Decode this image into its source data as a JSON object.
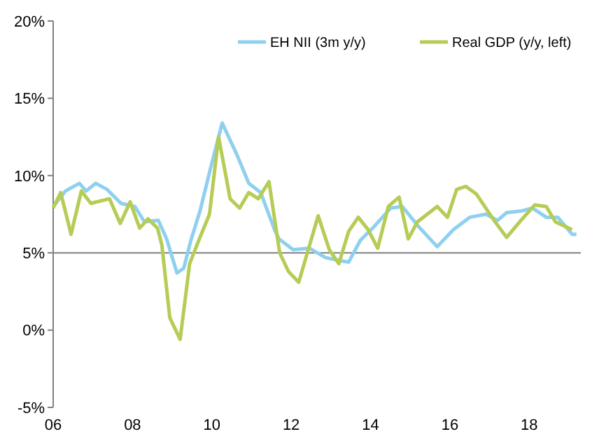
{
  "chart_data": {
    "type": "line",
    "legend": "top right",
    "grid": false,
    "xlim": [
      2006,
      2019.3
    ],
    "xticks": [
      {
        "value": 2006,
        "label": "06"
      },
      {
        "value": 2008,
        "label": "08"
      },
      {
        "value": 2010,
        "label": "10"
      },
      {
        "value": 2012,
        "label": "12"
      },
      {
        "value": 2014,
        "label": "14"
      },
      {
        "value": 2016,
        "label": "16"
      },
      {
        "value": 2018,
        "label": "18"
      }
    ],
    "ylim": [
      -5,
      20
    ],
    "yticks": [
      {
        "value": -5,
        "label": "-5%"
      },
      {
        "value": 0,
        "label": "0%"
      },
      {
        "value": 5,
        "label": "5%"
      },
      {
        "value": 10,
        "label": "10%"
      },
      {
        "value": 15,
        "label": "15%"
      },
      {
        "value": 20,
        "label": "20%"
      }
    ],
    "ref_lines": [
      {
        "axis": "y",
        "value": 5,
        "color": "#808080"
      }
    ],
    "series": [
      {
        "name": "EH NII (3m y/y)",
        "color": "#8fd0ee",
        "x": [
          2006.0,
          2006.31,
          2006.66,
          2006.83,
          2007.07,
          2007.36,
          2007.71,
          2008.06,
          2008.3,
          2008.65,
          2008.86,
          2009.12,
          2009.29,
          2009.47,
          2009.7,
          2009.96,
          2010.26,
          2010.64,
          2010.93,
          2011.23,
          2011.58,
          2011.69,
          2012.05,
          2012.46,
          2012.86,
          2013.22,
          2013.45,
          2013.74,
          2014.09,
          2014.51,
          2014.8,
          2015.21,
          2015.68,
          2016.09,
          2016.5,
          2016.91,
          2017.2,
          2017.43,
          2017.79,
          2018.08,
          2018.43,
          2018.72,
          2019.08,
          2019.19
        ],
        "values": [
          8.0,
          9.0,
          9.5,
          9.0,
          9.5,
          9.1,
          8.2,
          8.0,
          7.0,
          7.1,
          5.9,
          3.7,
          4.0,
          5.8,
          7.7,
          10.4,
          13.4,
          11.3,
          9.5,
          8.9,
          6.5,
          5.9,
          5.2,
          5.3,
          4.7,
          4.5,
          4.4,
          5.8,
          6.7,
          7.9,
          8.0,
          6.7,
          5.4,
          6.5,
          7.3,
          7.5,
          7.1,
          7.6,
          7.7,
          7.9,
          7.3,
          7.3,
          6.2,
          6.2
        ]
      },
      {
        "name": "Real GDP (y/y, left)",
        "color": "#b5cc55",
        "x": [
          2006.0,
          2006.19,
          2006.45,
          2006.71,
          2006.95,
          2007.42,
          2007.69,
          2007.94,
          2008.18,
          2008.39,
          2008.63,
          2008.74,
          2008.94,
          2009.2,
          2009.44,
          2009.7,
          2009.94,
          2010.17,
          2010.46,
          2010.7,
          2010.93,
          2011.17,
          2011.44,
          2011.71,
          2011.93,
          2012.19,
          2012.68,
          2012.96,
          2013.2,
          2013.45,
          2013.69,
          2013.94,
          2014.18,
          2014.45,
          2014.72,
          2014.95,
          2015.18,
          2015.68,
          2015.94,
          2016.17,
          2016.4,
          2016.67,
          2017.14,
          2017.43,
          2017.79,
          2018.14,
          2018.43,
          2018.66,
          2019.08
        ],
        "values": [
          7.9,
          8.9,
          6.2,
          9.0,
          8.2,
          8.5,
          6.9,
          8.3,
          6.6,
          7.2,
          6.6,
          5.5,
          0.8,
          -0.6,
          4.3,
          6.0,
          7.5,
          12.5,
          8.5,
          7.9,
          8.9,
          8.5,
          9.6,
          5.0,
          3.8,
          3.1,
          7.4,
          5.2,
          4.3,
          6.4,
          7.3,
          6.5,
          5.3,
          8.0,
          8.6,
          5.9,
          7.0,
          8.0,
          7.3,
          9.1,
          9.3,
          8.8,
          7.0,
          6.0,
          7.1,
          8.1,
          8.0,
          7.0,
          6.5
        ]
      }
    ]
  }
}
